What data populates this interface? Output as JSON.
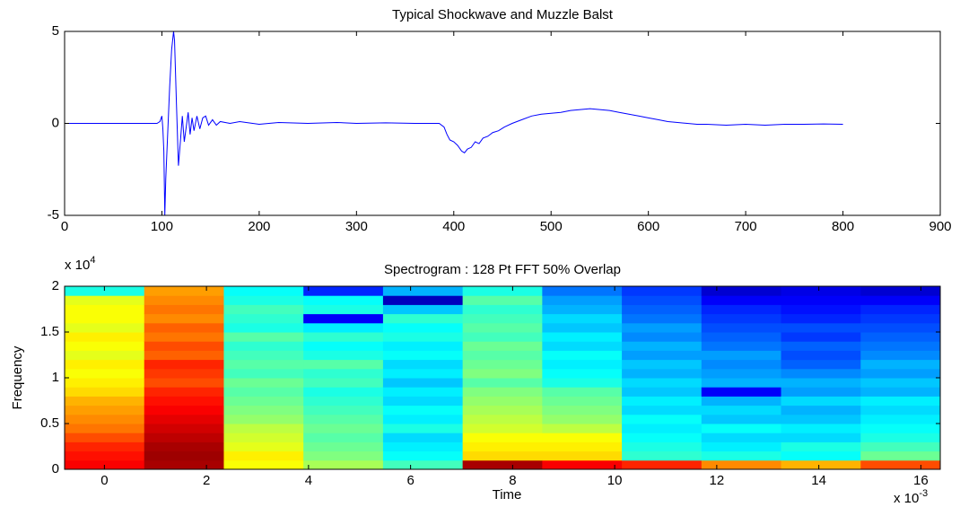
{
  "chart_data": [
    {
      "type": "line",
      "title": "Typical Shockwave and Muzzle Balst",
      "color": "#0000ff",
      "xlim": [
        0,
        900
      ],
      "xticks": [
        0,
        100,
        200,
        300,
        400,
        500,
        600,
        700,
        800,
        900
      ],
      "ylim": [
        -5,
        5
      ],
      "yticks": [
        -5,
        0,
        5
      ],
      "x": [
        0,
        50,
        95,
        98,
        100,
        101,
        102,
        103,
        104,
        106,
        108,
        110,
        112,
        113,
        115,
        117,
        119,
        121,
        123,
        125,
        127,
        129,
        131,
        133,
        136,
        139,
        142,
        145,
        148,
        152,
        156,
        160,
        170,
        180,
        200,
        220,
        250,
        280,
        300,
        330,
        360,
        385,
        390,
        393,
        396,
        400,
        404,
        408,
        411,
        414,
        418,
        422,
        426,
        430,
        435,
        440,
        446,
        452,
        460,
        470,
        480,
        490,
        500,
        510,
        520,
        530,
        540,
        550,
        560,
        570,
        580,
        590,
        600,
        610,
        620,
        630,
        640,
        650,
        660,
        680,
        700,
        720,
        740,
        760,
        780,
        800
      ],
      "values": [
        0,
        0,
        0,
        0.1,
        0.4,
        -0.3,
        -1.5,
        -5,
        -3,
        -0.5,
        2,
        4,
        5,
        4.5,
        1,
        -2.3,
        -1,
        0.4,
        -1,
        -0.2,
        0.6,
        -0.6,
        0.3,
        -0.4,
        0.4,
        -0.3,
        0.3,
        0.4,
        -0.1,
        0.2,
        -0.1,
        0.1,
        0,
        0.1,
        -0.05,
        0.05,
        0,
        0.05,
        0,
        0.03,
        0,
        0,
        -0.2,
        -0.6,
        -0.9,
        -1.0,
        -1.2,
        -1.5,
        -1.6,
        -1.4,
        -1.3,
        -1.0,
        -1.1,
        -0.8,
        -0.7,
        -0.5,
        -0.4,
        -0.2,
        0,
        0.2,
        0.4,
        0.5,
        0.55,
        0.6,
        0.7,
        0.75,
        0.8,
        0.75,
        0.7,
        0.6,
        0.5,
        0.4,
        0.3,
        0.2,
        0.1,
        0.05,
        0,
        -0.05,
        -0.05,
        -0.1,
        -0.05,
        -0.1,
        -0.05,
        -0.05,
        -0.03,
        -0.05
      ]
    },
    {
      "type": "heatmap",
      "title": "Spectrogram : 128 Pt FFT 50% Overlap",
      "xlabel": "Time",
      "ylabel": "Frequency",
      "x_multiplier": {
        "base": "x 10",
        "exponent": "-3"
      },
      "y_multiplier": {
        "base": "x 10",
        "exponent": "4"
      },
      "colormap": "jet",
      "clim": [
        0,
        100
      ],
      "xlim": [
        -0.78,
        16.38
      ],
      "xticks": [
        0,
        2,
        4,
        6,
        8,
        10,
        12,
        14,
        16
      ],
      "ylim": [
        0,
        2
      ],
      "yticks": [
        0,
        0.5,
        1,
        1.5,
        2
      ],
      "x": [
        0,
        1.56,
        3.12,
        4.68,
        6.24,
        7.8,
        9.36,
        10.92,
        12.48,
        14.04,
        15.6
      ],
      "y": [
        0.05,
        0.15,
        0.25,
        0.35,
        0.45,
        0.55,
        0.65,
        0.75,
        0.85,
        0.95,
        1.05,
        1.15,
        1.25,
        1.35,
        1.45,
        1.55,
        1.65,
        1.75,
        1.85,
        1.95
      ],
      "z": [
        [
          88,
          86,
          84,
          80,
          76,
          74,
          72,
          70,
          66,
          64,
          62,
          64,
          60,
          62,
          64,
          60,
          62,
          62,
          60,
          40
        ],
        [
          96,
          97,
          96,
          94,
          92,
          90,
          88,
          86,
          84,
          80,
          82,
          84,
          78,
          80,
          76,
          78,
          74,
          76,
          74,
          72
        ],
        [
          62,
          64,
          60,
          58,
          56,
          52,
          50,
          48,
          46,
          48,
          44,
          46,
          44,
          42,
          46,
          40,
          42,
          44,
          40,
          38
        ],
        [
          54,
          50,
          48,
          46,
          48,
          46,
          44,
          42,
          40,
          44,
          42,
          46,
          40,
          38,
          42,
          36,
          12,
          40,
          38,
          16
        ],
        [
          44,
          38,
          36,
          34,
          40,
          36,
          38,
          34,
          36,
          32,
          36,
          34,
          38,
          36,
          40,
          38,
          42,
          32,
          6,
          30
        ],
        [
          96,
          66,
          64,
          62,
          58,
          56,
          54,
          52,
          50,
          46,
          50,
          48,
          46,
          48,
          44,
          46,
          44,
          42,
          46,
          40
        ],
        [
          88,
          66,
          64,
          62,
          56,
          52,
          50,
          48,
          46,
          40,
          38,
          36,
          38,
          34,
          36,
          32,
          34,
          30,
          28,
          24
        ],
        [
          84,
          42,
          40,
          38,
          36,
          38,
          34,
          36,
          32,
          34,
          30,
          32,
          28,
          30,
          26,
          28,
          24,
          22,
          20,
          18
        ],
        [
          74,
          40,
          36,
          34,
          38,
          32,
          34,
          30,
          12,
          30,
          28,
          26,
          28,
          24,
          22,
          20,
          18,
          16,
          12,
          8
        ],
        [
          70,
          38,
          40,
          34,
          36,
          32,
          30,
          34,
          28,
          30,
          26,
          22,
          20,
          22,
          18,
          20,
          16,
          14,
          12,
          10
        ],
        [
          80,
          48,
          44,
          40,
          38,
          36,
          34,
          36,
          30,
          32,
          28,
          30,
          26,
          24,
          22,
          20,
          18,
          16,
          12,
          8
        ]
      ]
    }
  ]
}
